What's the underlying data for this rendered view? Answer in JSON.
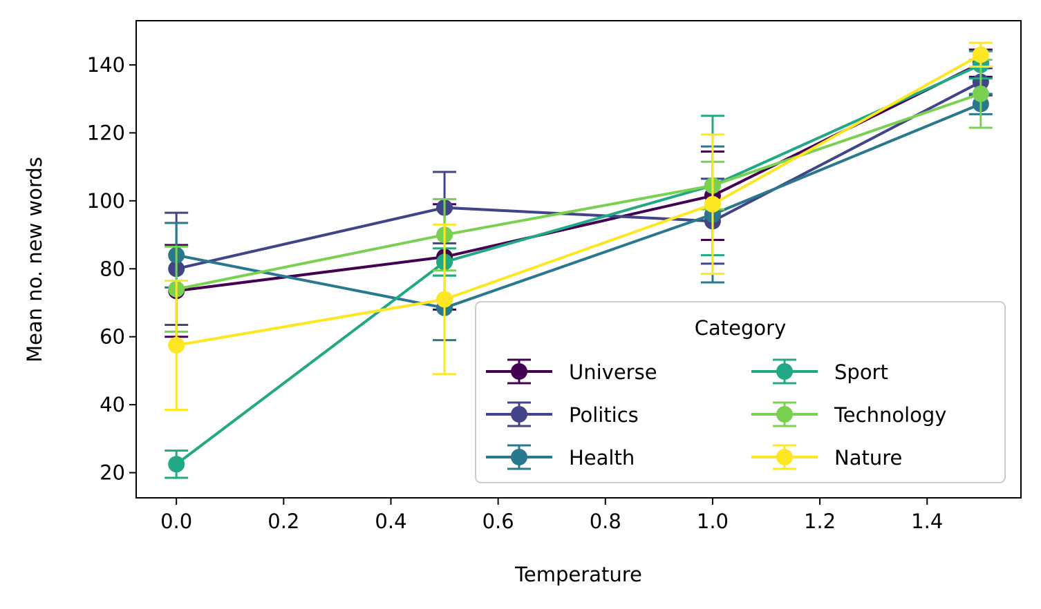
{
  "chart_data": {
    "type": "line",
    "title": "",
    "xlabel": "Temperature",
    "ylabel": "Mean no. new words",
    "xlim": [
      -0.075,
      1.575
    ],
    "ylim": [
      12.6,
      153
    ],
    "xticks": [
      0.0,
      0.2,
      0.4,
      0.6,
      0.8,
      1.0,
      1.2,
      1.4
    ],
    "xtick_labels": [
      "0.0",
      "0.2",
      "0.4",
      "0.6",
      "0.8",
      "1.0",
      "1.2",
      "1.4"
    ],
    "yticks": [
      20,
      40,
      60,
      80,
      100,
      120,
      140
    ],
    "ytick_labels": [
      "20",
      "40",
      "60",
      "80",
      "100",
      "120",
      "140"
    ],
    "grid": false,
    "legend": {
      "title": "Category",
      "placement": "lower-right",
      "columns": 2
    },
    "x": [
      0.0,
      0.5,
      1.0,
      1.5
    ],
    "series": [
      {
        "name": "Universe",
        "color": "#440154",
        "values": [
          73.5,
          83.5,
          101.5,
          140.5
        ],
        "err": [
          13.5,
          15.5,
          13.0,
          4.0
        ]
      },
      {
        "name": "Politics",
        "color": "#414487",
        "values": [
          80.0,
          98.0,
          94.0,
          135.0
        ],
        "err": [
          16.5,
          10.5,
          12.5,
          4.0
        ]
      },
      {
        "name": "Health",
        "color": "#2a788e",
        "values": [
          84.0,
          68.5,
          96.0,
          128.5
        ],
        "err": [
          9.5,
          9.5,
          20.0,
          3.0
        ]
      },
      {
        "name": "Sport",
        "color": "#22a884",
        "values": [
          22.5,
          82.0,
          104.5,
          140.0
        ],
        "err": [
          4.0,
          4.0,
          20.5,
          4.0
        ]
      },
      {
        "name": "Technology",
        "color": "#7ad151",
        "values": [
          74.0,
          90.0,
          104.5,
          131.5
        ],
        "err": [
          12.5,
          10.5,
          7.0,
          10.0
        ]
      },
      {
        "name": "Nature",
        "color": "#fde725",
        "values": [
          57.5,
          71.0,
          99.0,
          143.0
        ],
        "err": [
          19.0,
          22.0,
          20.5,
          3.5
        ]
      }
    ]
  }
}
